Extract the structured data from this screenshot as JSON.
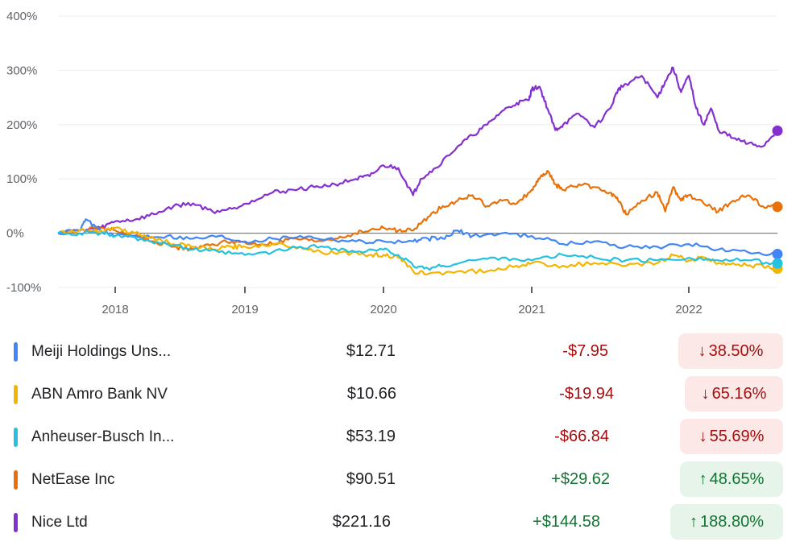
{
  "chart_data": {
    "type": "line",
    "y_unit": "%",
    "ylim": [
      -100,
      400
    ],
    "y_ticks": [
      "400%",
      "300%",
      "200%",
      "100%",
      "0%",
      "-100%"
    ],
    "x_ticks": [
      "2018",
      "2019",
      "2020",
      "2021",
      "2022"
    ],
    "xlim": [
      2017.6,
      2022.6
    ],
    "baseline": 0,
    "grid": true,
    "series": [
      {
        "name": "Nice Ltd",
        "color": "#8430ce",
        "x": [
          2017.6,
          2017.75,
          2017.9,
          2018.0,
          2018.15,
          2018.3,
          2018.45,
          2018.6,
          2018.75,
          2018.9,
          2019.05,
          2019.2,
          2019.35,
          2019.5,
          2019.65,
          2019.8,
          2019.9,
          2020.0,
          2020.1,
          2020.2,
          2020.25,
          2020.35,
          2020.5,
          2020.6,
          2020.7,
          2020.8,
          2020.9,
          2020.98,
          2021.0,
          2021.05,
          2021.1,
          2021.15,
          2021.2,
          2021.3,
          2021.4,
          2021.5,
          2021.55,
          2021.6,
          2021.7,
          2021.8,
          2021.85,
          2021.9,
          2021.95,
          2022.0,
          2022.05,
          2022.1,
          2022.15,
          2022.2,
          2022.3,
          2022.4,
          2022.5,
          2022.6
        ],
        "values": [
          0,
          5,
          10,
          22,
          25,
          35,
          50,
          55,
          40,
          45,
          60,
          75,
          80,
          85,
          90,
          100,
          105,
          125,
          120,
          70,
          100,
          120,
          160,
          180,
          200,
          225,
          240,
          245,
          265,
          270,
          230,
          190,
          200,
          220,
          195,
          230,
          265,
          275,
          290,
          250,
          280,
          305,
          260,
          290,
          230,
          200,
          230,
          190,
          175,
          165,
          160,
          188.8
        ]
      },
      {
        "name": "NetEase Inc",
        "color": "#e8710a",
        "x": [
          2017.6,
          2017.75,
          2017.9,
          2018.0,
          2018.15,
          2018.3,
          2018.45,
          2018.6,
          2018.75,
          2018.9,
          2019.05,
          2019.2,
          2019.35,
          2019.5,
          2019.65,
          2019.8,
          2019.9,
          2020.0,
          2020.1,
          2020.2,
          2020.3,
          2020.4,
          2020.5,
          2020.6,
          2020.7,
          2020.8,
          2020.9,
          2021.0,
          2021.05,
          2021.1,
          2021.15,
          2021.2,
          2021.3,
          2021.4,
          2021.5,
          2021.55,
          2021.6,
          2021.7,
          2021.8,
          2021.85,
          2021.9,
          2021.95,
          2022.0,
          2022.1,
          2022.2,
          2022.3,
          2022.4,
          2022.5,
          2022.6
        ],
        "values": [
          0,
          5,
          10,
          5,
          -5,
          -15,
          -25,
          -30,
          -20,
          -15,
          -20,
          -20,
          -10,
          -15,
          -10,
          0,
          5,
          10,
          5,
          5,
          30,
          50,
          60,
          70,
          50,
          60,
          55,
          80,
          100,
          115,
          90,
          80,
          90,
          85,
          75,
          60,
          35,
          60,
          75,
          40,
          85,
          60,
          70,
          55,
          40,
          60,
          70,
          50,
          48.65
        ]
      },
      {
        "name": "Meiji Holdings Uns...",
        "color": "#4285f4",
        "x": [
          2017.6,
          2017.75,
          2017.8,
          2017.9,
          2018.0,
          2018.2,
          2018.4,
          2018.6,
          2018.8,
          2019.0,
          2019.2,
          2019.4,
          2019.6,
          2019.8,
          2020.0,
          2020.2,
          2020.3,
          2020.4,
          2020.5,
          2020.6,
          2020.8,
          2021.0,
          2021.2,
          2021.4,
          2021.6,
          2021.8,
          2022.0,
          2022.2,
          2022.4,
          2022.6
        ],
        "values": [
          0,
          5,
          25,
          5,
          -5,
          -5,
          -5,
          -10,
          -5,
          -15,
          -10,
          -5,
          -10,
          -15,
          -15,
          -15,
          -10,
          -10,
          5,
          -5,
          0,
          -5,
          -20,
          -15,
          -25,
          -25,
          -20,
          -30,
          -35,
          -38.5
        ]
      },
      {
        "name": "ABN Amro Bank NV",
        "color": "#f4b400",
        "x": [
          2017.6,
          2017.75,
          2017.9,
          2018.0,
          2018.15,
          2018.3,
          2018.45,
          2018.6,
          2018.75,
          2018.9,
          2019.0,
          2019.2,
          2019.4,
          2019.55,
          2019.7,
          2019.9,
          2020.0,
          2020.1,
          2020.2,
          2020.3,
          2020.5,
          2020.7,
          2020.9,
          2021.0,
          2021.2,
          2021.4,
          2021.6,
          2021.8,
          2021.9,
          2022.0,
          2022.1,
          2022.2,
          2022.3,
          2022.4,
          2022.5,
          2022.6
        ],
        "values": [
          0,
          5,
          5,
          10,
          0,
          -10,
          -20,
          -25,
          -30,
          -25,
          -25,
          -20,
          -25,
          -35,
          -35,
          -40,
          -40,
          -45,
          -70,
          -75,
          -70,
          -70,
          -60,
          -55,
          -60,
          -55,
          -60,
          -55,
          -40,
          -50,
          -45,
          -55,
          -55,
          -60,
          -60,
          -65.16
        ]
      },
      {
        "name": "Anheuser-Busch In...",
        "color": "#24c1e0",
        "x": [
          2017.6,
          2017.75,
          2017.9,
          2018.0,
          2018.2,
          2018.4,
          2018.6,
          2018.8,
          2019.0,
          2019.2,
          2019.4,
          2019.6,
          2019.8,
          2020.0,
          2020.1,
          2020.2,
          2020.3,
          2020.4,
          2020.6,
          2020.8,
          2021.0,
          2021.2,
          2021.4,
          2021.6,
          2021.8,
          2022.0,
          2022.2,
          2022.4,
          2022.6
        ],
        "values": [
          0,
          0,
          0,
          -5,
          -10,
          -20,
          -30,
          -35,
          -40,
          -35,
          -25,
          -25,
          -35,
          -30,
          -40,
          -60,
          -65,
          -60,
          -50,
          -45,
          -50,
          -40,
          -45,
          -50,
          -50,
          -45,
          -50,
          -50,
          -55.69
        ]
      }
    ]
  },
  "table": {
    "rows": [
      {
        "color": "#4285f4",
        "name": "Meiji Holdings Uns...",
        "price": "$12.71",
        "change": "-$7.95",
        "pct": "38.50%",
        "dir": "down",
        "arrow": "↓"
      },
      {
        "color": "#f4b400",
        "name": "ABN Amro Bank NV",
        "price": "$10.66",
        "change": "-$19.94",
        "pct": "65.16%",
        "dir": "down",
        "arrow": "↓"
      },
      {
        "color": "#24c1e0",
        "name": "Anheuser-Busch In...",
        "price": "$53.19",
        "change": "-$66.84",
        "pct": "55.69%",
        "dir": "down",
        "arrow": "↓"
      },
      {
        "color": "#e8710a",
        "name": "NetEase Inc",
        "price": "$90.51",
        "change": "+$29.62",
        "pct": "48.65%",
        "dir": "up",
        "arrow": "↑"
      },
      {
        "color": "#8430ce",
        "name": "Nice Ltd",
        "price": "$221.16",
        "change": "+$144.58",
        "pct": "188.80%",
        "dir": "up",
        "arrow": "↑"
      }
    ]
  }
}
